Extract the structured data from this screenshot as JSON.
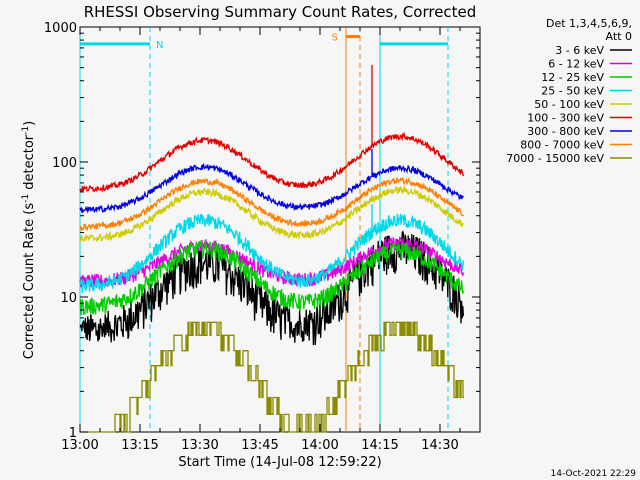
{
  "chart_data": {
    "type": "line",
    "title": "RHESSI Observing Summary Count Rates, Corrected",
    "xlabel": "Start Time (14-Jul-08 12:59:22)",
    "ylabel_main": "Corrected Count Rate (s",
    "ylabel_sup1": "-1",
    "ylabel_mid": " detector",
    "ylabel_sup2": "-1",
    "ylabel_end": ")",
    "xlim_minutes": [
      0,
      100
    ],
    "ylim": [
      1,
      1000
    ],
    "yscale": "log",
    "xticks": [
      {
        "m": 0,
        "label": "13:00"
      },
      {
        "m": 15,
        "label": "13:15"
      },
      {
        "m": 30,
        "label": "13:30"
      },
      {
        "m": 45,
        "label": "13:45"
      },
      {
        "m": 60,
        "label": "14:00"
      },
      {
        "m": 75,
        "label": "14:15"
      },
      {
        "m": 90,
        "label": "14:30"
      }
    ],
    "yticks": [
      {
        "v": 1,
        "label": "1"
      },
      {
        "v": 10,
        "label": "10"
      },
      {
        "v": 100,
        "label": "100"
      },
      {
        "v": 1000,
        "label": "1000"
      }
    ],
    "legend": {
      "placement": "right",
      "title_line1": "Det 1,3,4,5,6,9,",
      "title_line2": "Att 0"
    },
    "series": [
      {
        "name": "3 - 6 keV",
        "color": "#000000",
        "base": 5.5,
        "p1": 18,
        "p2": 23,
        "noise": 0.35,
        "floor": 5
      },
      {
        "name": "6 - 12 keV",
        "color": "#e000e0",
        "base": 13,
        "p1": 24,
        "p2": 25,
        "noise": 0.12
      },
      {
        "name": "12 - 25 keV",
        "color": "#00cc00",
        "base": 8.5,
        "p1": 23,
        "p2": 22,
        "noise": 0.15
      },
      {
        "name": "25 - 50 keV",
        "color": "#00d8e8",
        "base": 12,
        "p1": 37,
        "p2": 37,
        "noise": 0.12
      },
      {
        "name": "50 - 100 keV",
        "color": "#cccc00",
        "base": 27,
        "p1": 60,
        "p2": 62,
        "noise": 0.06
      },
      {
        "name": "100 - 300 keV",
        "color": "#e00000",
        "base": 63,
        "p1": 145,
        "p2": 155,
        "noise": 0.05
      },
      {
        "name": "300 - 800 keV",
        "color": "#0000e0",
        "base": 44,
        "p1": 92,
        "p2": 90,
        "noise": 0.05
      },
      {
        "name": "800 - 7000 keV",
        "color": "#ff7f00",
        "base": 33,
        "p1": 72,
        "p2": 73,
        "noise": 0.05
      },
      {
        "name": "7000 - 15000 keV",
        "color": "#8b8b00",
        "base": 1,
        "p1": 6.5,
        "p2": 6.5,
        "noise": 0,
        "stepped": true
      }
    ],
    "peaks_minutes": [
      31,
      80
    ],
    "peak_width_minutes": 9,
    "spike_minutes": 73,
    "annotations": [
      {
        "label": "N",
        "start": 0,
        "end": 17.5,
        "color": "#00d8e8",
        "y": 750
      },
      {
        "label": "",
        "start": 75,
        "end": 92,
        "color": "#00d8e8",
        "y": 750
      },
      {
        "label": "S",
        "start": 66.5,
        "end": 70,
        "color": "#ff7f00",
        "y": 850
      }
    ],
    "vlines": [
      {
        "m": 0,
        "color": "#00d8e8",
        "style": "solid"
      },
      {
        "m": 17.5,
        "color": "#00d8e8",
        "style": "dashed"
      },
      {
        "m": 75,
        "color": "#00d8e8",
        "style": "solid"
      },
      {
        "m": 92,
        "color": "#00d8e8",
        "style": "dashed"
      },
      {
        "m": 66.5,
        "color": "#ff7f00",
        "style": "solid"
      },
      {
        "m": 70,
        "color": "#ff7f00",
        "style": "dashed"
      }
    ],
    "grid": false
  },
  "footer_date": "14-Oct-2021 22:29",
  "colors": {
    "axes": "#000000",
    "background": "#f6f6f6"
  }
}
